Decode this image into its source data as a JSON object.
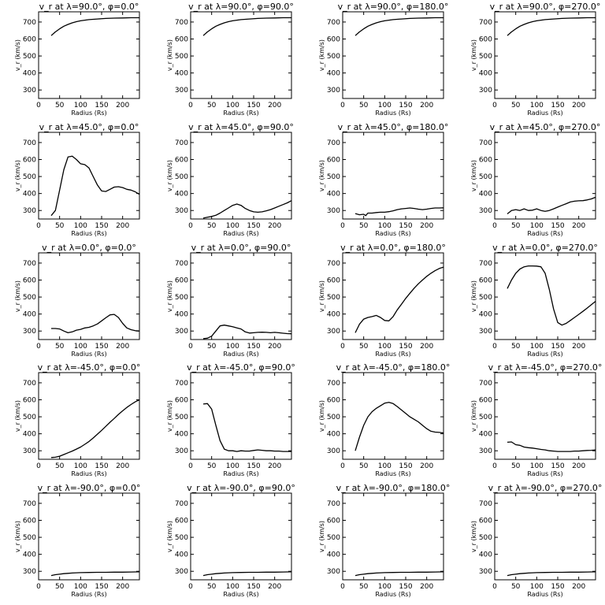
{
  "chart_data": [
    {
      "type": "line",
      "title": "v_r at λ=90.0°, φ=0.0°",
      "xlabel": "Radius (Rs)",
      "ylabel": "v_r (km/s)",
      "xlim": [
        0,
        240
      ],
      "ylim": [
        250,
        760
      ],
      "xticks": [
        0,
        50,
        100,
        150,
        200
      ],
      "yticks": [
        300,
        400,
        500,
        600,
        700
      ],
      "grid": false,
      "x": [
        30,
        40,
        50,
        60,
        70,
        80,
        90,
        100,
        120,
        140,
        160,
        180,
        200,
        220,
        240
      ],
      "y": [
        620,
        642,
        660,
        675,
        686,
        695,
        702,
        707,
        714,
        718,
        721,
        723,
        724,
        725,
        725
      ]
    },
    {
      "type": "line",
      "title": "v_r at λ=90.0°, φ=90.0°",
      "xlabel": "Radius (Rs)",
      "ylabel": "v_r (km/s)",
      "xlim": [
        0,
        240
      ],
      "ylim": [
        250,
        760
      ],
      "xticks": [
        0,
        50,
        100,
        150,
        200
      ],
      "yticks": [
        300,
        400,
        500,
        600,
        700
      ],
      "grid": false,
      "x": [
        30,
        40,
        50,
        60,
        70,
        80,
        90,
        100,
        120,
        140,
        160,
        180,
        200,
        220,
        240
      ],
      "y": [
        620,
        642,
        660,
        675,
        686,
        695,
        702,
        707,
        714,
        718,
        721,
        723,
        724,
        725,
        725
      ]
    },
    {
      "type": "line",
      "title": "v_r at λ=90.0°, φ=180.0°",
      "xlabel": "Radius (Rs)",
      "ylabel": "v_r (km/s)",
      "xlim": [
        0,
        240
      ],
      "ylim": [
        250,
        760
      ],
      "xticks": [
        0,
        50,
        100,
        150,
        200
      ],
      "yticks": [
        300,
        400,
        500,
        600,
        700
      ],
      "grid": false,
      "x": [
        30,
        40,
        50,
        60,
        70,
        80,
        90,
        100,
        120,
        140,
        160,
        180,
        200,
        220,
        240
      ],
      "y": [
        620,
        642,
        660,
        675,
        686,
        695,
        702,
        707,
        714,
        718,
        721,
        723,
        724,
        725,
        725
      ]
    },
    {
      "type": "line",
      "title": "v_r at λ=90.0°, φ=270.0°",
      "xlabel": "Radius (Rs)",
      "ylabel": "v_r (km/s)",
      "xlim": [
        0,
        240
      ],
      "ylim": [
        250,
        760
      ],
      "xticks": [
        0,
        50,
        100,
        150,
        200
      ],
      "yticks": [
        300,
        400,
        500,
        600,
        700
      ],
      "grid": false,
      "x": [
        30,
        40,
        50,
        60,
        70,
        80,
        90,
        100,
        120,
        140,
        160,
        180,
        200,
        220,
        240
      ],
      "y": [
        620,
        642,
        660,
        675,
        686,
        695,
        702,
        707,
        714,
        718,
        721,
        723,
        724,
        725,
        725
      ]
    },
    {
      "type": "line",
      "title": "v_r at λ=45.0°, φ=0.0°",
      "xlabel": "Radius (Rs)",
      "ylabel": "v_r (km/s)",
      "xlim": [
        0,
        240
      ],
      "ylim": [
        250,
        760
      ],
      "xticks": [
        0,
        50,
        100,
        150,
        200
      ],
      "yticks": [
        300,
        400,
        500,
        600,
        700
      ],
      "grid": false,
      "x": [
        30,
        40,
        50,
        60,
        70,
        80,
        90,
        100,
        110,
        120,
        130,
        140,
        150,
        160,
        170,
        180,
        190,
        200,
        210,
        220,
        230,
        240
      ],
      "y": [
        270,
        300,
        420,
        540,
        615,
        620,
        600,
        575,
        570,
        550,
        500,
        450,
        415,
        412,
        425,
        438,
        440,
        435,
        425,
        420,
        410,
        395
      ]
    },
    {
      "type": "line",
      "title": "v_r at λ=45.0°, φ=90.0°",
      "xlabel": "Radius (Rs)",
      "ylabel": "v_r (km/s)",
      "xlim": [
        0,
        240
      ],
      "ylim": [
        250,
        760
      ],
      "xticks": [
        0,
        50,
        100,
        150,
        200
      ],
      "yticks": [
        300,
        400,
        500,
        600,
        700
      ],
      "grid": false,
      "x": [
        30,
        40,
        50,
        60,
        70,
        80,
        90,
        100,
        110,
        120,
        130,
        140,
        150,
        160,
        170,
        180,
        190,
        200,
        210,
        220,
        230,
        240
      ],
      "y": [
        255,
        260,
        265,
        272,
        285,
        300,
        315,
        330,
        338,
        330,
        312,
        300,
        292,
        290,
        292,
        298,
        305,
        315,
        325,
        335,
        345,
        358
      ]
    },
    {
      "type": "line",
      "title": "v_r at λ=45.0°, φ=180.0°",
      "xlabel": "Radius (Rs)",
      "ylabel": "v_r (km/s)",
      "xlim": [
        0,
        240
      ],
      "ylim": [
        250,
        760
      ],
      "xticks": [
        0,
        50,
        100,
        150,
        200
      ],
      "yticks": [
        300,
        400,
        500,
        600,
        700
      ],
      "grid": false,
      "x": [
        30,
        40,
        50,
        55,
        60,
        70,
        80,
        90,
        100,
        110,
        120,
        130,
        140,
        150,
        160,
        170,
        180,
        190,
        200,
        210,
        220,
        230,
        240
      ],
      "y": [
        282,
        275,
        278,
        270,
        285,
        285,
        288,
        290,
        290,
        293,
        298,
        305,
        310,
        312,
        315,
        312,
        308,
        305,
        308,
        312,
        315,
        315,
        316
      ]
    },
    {
      "type": "line",
      "title": "v_r at λ=45.0°, φ=270.0°",
      "xlabel": "Radius (Rs)",
      "ylabel": "v_r (km/s)",
      "xlim": [
        0,
        240
      ],
      "ylim": [
        250,
        760
      ],
      "xticks": [
        0,
        50,
        100,
        150,
        200
      ],
      "yticks": [
        300,
        400,
        500,
        600,
        700
      ],
      "grid": false,
      "x": [
        30,
        40,
        50,
        60,
        70,
        80,
        90,
        100,
        110,
        120,
        130,
        140,
        150,
        160,
        170,
        180,
        190,
        200,
        210,
        220,
        230,
        240
      ],
      "y": [
        280,
        300,
        305,
        300,
        310,
        300,
        302,
        310,
        300,
        295,
        300,
        310,
        320,
        330,
        340,
        350,
        355,
        357,
        358,
        362,
        368,
        378
      ]
    },
    {
      "type": "line",
      "title": "v_r at λ=0.0°, φ=0.0°",
      "xlabel": "Radius (Rs)",
      "ylabel": "v_r (km/s)",
      "xlim": [
        0,
        240
      ],
      "ylim": [
        250,
        760
      ],
      "xticks": [
        0,
        50,
        100,
        150,
        200
      ],
      "yticks": [
        300,
        400,
        500,
        600,
        700
      ],
      "grid": false,
      "x": [
        30,
        40,
        50,
        60,
        70,
        80,
        90,
        100,
        110,
        120,
        130,
        140,
        150,
        160,
        170,
        180,
        190,
        200,
        210,
        220,
        230,
        240
      ],
      "y": [
        315,
        315,
        312,
        300,
        290,
        295,
        305,
        310,
        318,
        322,
        330,
        342,
        360,
        378,
        395,
        398,
        380,
        345,
        318,
        308,
        302,
        300
      ]
    },
    {
      "type": "line",
      "title": "v_r at λ=0.0°, φ=90.0°",
      "xlabel": "Radius (Rs)",
      "ylabel": "v_r (km/s)",
      "xlim": [
        0,
        240
      ],
      "ylim": [
        250,
        760
      ],
      "xticks": [
        0,
        50,
        100,
        150,
        200
      ],
      "yticks": [
        300,
        400,
        500,
        600,
        700
      ],
      "grid": false,
      "x": [
        30,
        40,
        50,
        60,
        70,
        80,
        90,
        100,
        110,
        120,
        130,
        140,
        150,
        160,
        170,
        180,
        190,
        200,
        210,
        220,
        230,
        240
      ],
      "y": [
        255,
        258,
        270,
        300,
        330,
        335,
        330,
        325,
        318,
        312,
        295,
        288,
        290,
        292,
        293,
        292,
        290,
        292,
        290,
        287,
        285,
        284
      ]
    },
    {
      "type": "line",
      "title": "v_r at λ=0.0°, φ=180.0°",
      "xlabel": "Radius (Rs)",
      "ylabel": "v_r (km/s)",
      "xlim": [
        0,
        240
      ],
      "ylim": [
        250,
        760
      ],
      "xticks": [
        0,
        50,
        100,
        150,
        200
      ],
      "yticks": [
        300,
        400,
        500,
        600,
        700
      ],
      "grid": false,
      "x": [
        30,
        40,
        50,
        60,
        70,
        80,
        90,
        100,
        110,
        120,
        130,
        140,
        150,
        160,
        170,
        180,
        190,
        200,
        210,
        220,
        230,
        240
      ],
      "y": [
        290,
        340,
        370,
        380,
        385,
        392,
        380,
        362,
        360,
        385,
        425,
        458,
        492,
        522,
        552,
        578,
        600,
        622,
        640,
        655,
        668,
        676
      ]
    },
    {
      "type": "line",
      "title": "v_r at λ=0.0°, φ=270.0°",
      "xlabel": "Radius (Rs)",
      "ylabel": "v_r (km/s)",
      "xlim": [
        0,
        240
      ],
      "ylim": [
        250,
        760
      ],
      "xticks": [
        0,
        50,
        100,
        150,
        200
      ],
      "yticks": [
        300,
        400,
        500,
        600,
        700
      ],
      "grid": false,
      "x": [
        30,
        40,
        50,
        60,
        70,
        80,
        90,
        100,
        110,
        120,
        130,
        140,
        150,
        160,
        170,
        180,
        190,
        200,
        210,
        220,
        230,
        240
      ],
      "y": [
        550,
        600,
        640,
        665,
        678,
        683,
        683,
        682,
        678,
        640,
        545,
        430,
        350,
        335,
        345,
        362,
        380,
        398,
        416,
        435,
        455,
        475
      ]
    },
    {
      "type": "line",
      "title": "v_r at λ=-45.0°, φ=0.0°",
      "xlabel": "Radius (Rs)",
      "ylabel": "v_r (km/s)",
      "xlim": [
        0,
        240
      ],
      "ylim": [
        250,
        760
      ],
      "xticks": [
        0,
        50,
        100,
        150,
        200
      ],
      "yticks": [
        300,
        400,
        500,
        600,
        700
      ],
      "grid": false,
      "x": [
        30,
        40,
        50,
        60,
        70,
        80,
        90,
        100,
        110,
        120,
        130,
        140,
        150,
        160,
        170,
        180,
        190,
        200,
        210,
        220,
        230,
        240
      ],
      "y": [
        260,
        262,
        268,
        278,
        288,
        298,
        310,
        322,
        338,
        355,
        375,
        398,
        420,
        444,
        468,
        490,
        514,
        535,
        555,
        572,
        588,
        600
      ]
    },
    {
      "type": "line",
      "title": "v_r at λ=-45.0°, φ=90.0°",
      "xlabel": "Radius (Rs)",
      "ylabel": "v_r (km/s)",
      "xlim": [
        0,
        240
      ],
      "ylim": [
        250,
        760
      ],
      "xticks": [
        0,
        50,
        100,
        150,
        200
      ],
      "yticks": [
        300,
        400,
        500,
        600,
        700
      ],
      "grid": false,
      "x": [
        30,
        40,
        50,
        60,
        70,
        80,
        90,
        100,
        110,
        120,
        130,
        140,
        150,
        160,
        170,
        180,
        190,
        200,
        210,
        220,
        230,
        240
      ],
      "y": [
        575,
        578,
        545,
        450,
        360,
        310,
        300,
        300,
        296,
        300,
        298,
        298,
        302,
        305,
        303,
        300,
        300,
        298,
        298,
        296,
        296,
        296
      ]
    },
    {
      "type": "line",
      "title": "v_r at λ=-45.0°, φ=180.0°",
      "xlabel": "Radius (Rs)",
      "ylabel": "v_r (km/s)",
      "xlim": [
        0,
        240
      ],
      "ylim": [
        250,
        760
      ],
      "xticks": [
        0,
        50,
        100,
        150,
        200
      ],
      "yticks": [
        300,
        400,
        500,
        600,
        700
      ],
      "grid": false,
      "x": [
        30,
        40,
        50,
        60,
        70,
        80,
        90,
        100,
        110,
        120,
        130,
        140,
        150,
        160,
        170,
        180,
        190,
        200,
        210,
        220,
        230,
        240
      ],
      "y": [
        300,
        380,
        450,
        500,
        530,
        550,
        565,
        580,
        585,
        578,
        560,
        540,
        520,
        500,
        485,
        470,
        450,
        430,
        415,
        410,
        408,
        405
      ]
    },
    {
      "type": "line",
      "title": "v_r at λ=-45.0°, φ=270.0°",
      "xlabel": "Radius (Rs)",
      "ylabel": "v_r (km/s)",
      "xlim": [
        0,
        240
      ],
      "ylim": [
        250,
        760
      ],
      "xticks": [
        0,
        50,
        100,
        150,
        200
      ],
      "yticks": [
        300,
        400,
        500,
        600,
        700
      ],
      "grid": false,
      "x": [
        30,
        40,
        50,
        60,
        70,
        80,
        90,
        100,
        110,
        120,
        130,
        140,
        150,
        160,
        170,
        180,
        190,
        200,
        210,
        220,
        230,
        240
      ],
      "y": [
        350,
        352,
        336,
        332,
        322,
        318,
        316,
        312,
        308,
        305,
        300,
        298,
        296,
        296,
        296,
        296,
        298,
        298,
        300,
        302,
        303,
        305
      ]
    },
    {
      "type": "line",
      "title": "v_r at λ=-90.0°, φ=0.0°",
      "xlabel": "Radius (Rs)",
      "ylabel": "v_r (km/s)",
      "xlim": [
        0,
        240
      ],
      "ylim": [
        250,
        760
      ],
      "xticks": [
        0,
        50,
        100,
        150,
        200
      ],
      "yticks": [
        300,
        400,
        500,
        600,
        700
      ],
      "grid": false,
      "x": [
        30,
        40,
        50,
        60,
        70,
        80,
        100,
        120,
        140,
        160,
        180,
        200,
        220,
        240
      ],
      "y": [
        275,
        280,
        283,
        286,
        288,
        290,
        292,
        293,
        294,
        294,
        295,
        295,
        296,
        297
      ]
    },
    {
      "type": "line",
      "title": "v_r at λ=-90.0°, φ=90.0°",
      "xlabel": "Radius (Rs)",
      "ylabel": "v_r (km/s)",
      "xlim": [
        0,
        240
      ],
      "ylim": [
        250,
        760
      ],
      "xticks": [
        0,
        50,
        100,
        150,
        200
      ],
      "yticks": [
        300,
        400,
        500,
        600,
        700
      ],
      "grid": false,
      "x": [
        30,
        40,
        50,
        60,
        70,
        80,
        100,
        120,
        140,
        160,
        180,
        200,
        220,
        240
      ],
      "y": [
        275,
        280,
        283,
        286,
        288,
        290,
        292,
        293,
        294,
        294,
        295,
        295,
        296,
        297
      ]
    },
    {
      "type": "line",
      "title": "v_r at λ=-90.0°, φ=180.0°",
      "xlabel": "Radius (Rs)",
      "ylabel": "v_r (km/s)",
      "xlim": [
        0,
        240
      ],
      "ylim": [
        250,
        760
      ],
      "xticks": [
        0,
        50,
        100,
        150,
        200
      ],
      "yticks": [
        300,
        400,
        500,
        600,
        700
      ],
      "grid": false,
      "x": [
        30,
        40,
        50,
        60,
        70,
        80,
        100,
        120,
        140,
        160,
        180,
        200,
        220,
        240
      ],
      "y": [
        275,
        280,
        283,
        286,
        288,
        290,
        292,
        293,
        294,
        294,
        295,
        295,
        296,
        297
      ]
    },
    {
      "type": "line",
      "title": "v_r at λ=-90.0°, φ=270.0°",
      "xlabel": "Radius (Rs)",
      "ylabel": "v_r (km/s)",
      "xlim": [
        0,
        240
      ],
      "ylim": [
        250,
        760
      ],
      "xticks": [
        0,
        50,
        100,
        150,
        200
      ],
      "yticks": [
        300,
        400,
        500,
        600,
        700
      ],
      "grid": false,
      "x": [
        30,
        40,
        50,
        60,
        70,
        80,
        100,
        120,
        140,
        160,
        180,
        200,
        220,
        240
      ],
      "y": [
        275,
        280,
        283,
        286,
        288,
        290,
        292,
        293,
        294,
        294,
        295,
        295,
        296,
        297
      ]
    }
  ]
}
